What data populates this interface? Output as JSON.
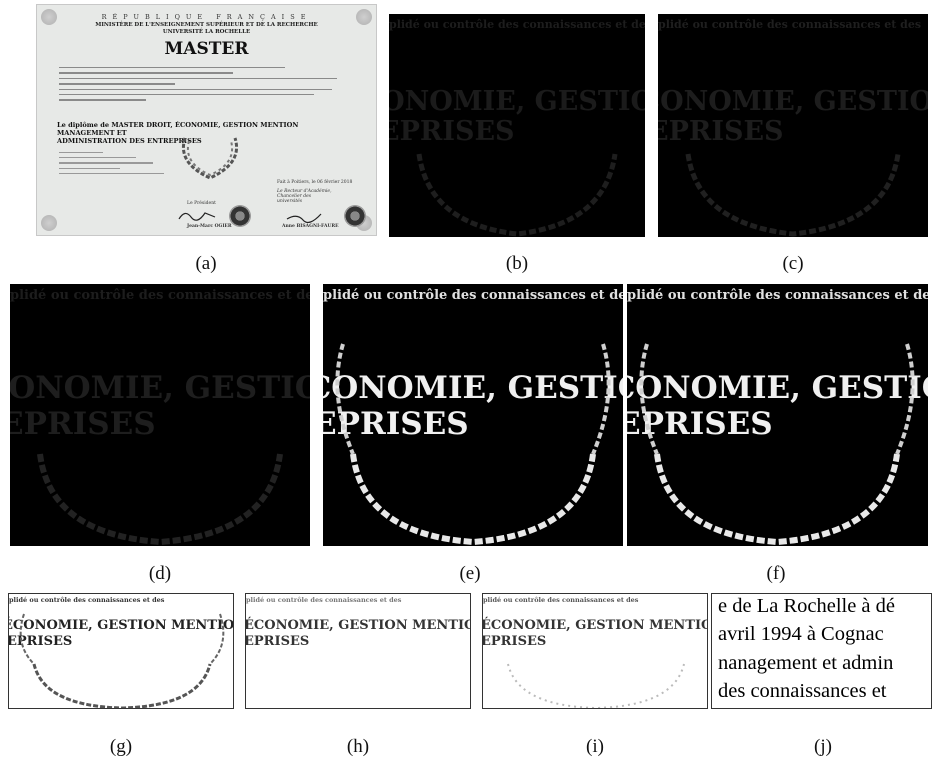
{
  "figure": {
    "captions": [
      "(a)",
      "(b)",
      "(c)",
      "(d)",
      "(e)",
      "(f)",
      "(g)",
      "(h)",
      "(i)",
      "(j)"
    ],
    "diploma": {
      "republic": "RÉPUBLIQUE FRANÇAISE",
      "ministry": "MINISTÈRE DE L'ENSEIGNEMENT SUPÉRIEUR ET DE LA RECHERCHE",
      "university": "UNIVERSITÉ LA ROCHELLE",
      "title": "MASTER",
      "degree_line1": "Le diplôme de MASTER DROIT, ÉCONOMIE, GESTION MENTION MANAGEMENT ET",
      "degree_line2": "ADMINISTRATION DES ENTREPRISES",
      "place_date": "Fait à Poitiers, le 06 février 2018",
      "signatory_left_role": "Le Président",
      "signatory_left_name": "Jean-Marc OGIER",
      "signatory_right_role": "Le Recteur d'Académie, Chancelier des universités",
      "signatory_right_name": "Anne BISAGNI-FAURE"
    },
    "crop_text": {
      "top": "plidé ou contrôle des connaissances et des",
      "middle1": "ÉCONOMIE, GESTION MENTION MA",
      "middle2": "EPRISES"
    },
    "ocr_lines": [
      "e de La Rochelle à dé",
      "avril 1994 à Cognac",
      "nanagement et admin",
      "des connaissances et"
    ]
  }
}
